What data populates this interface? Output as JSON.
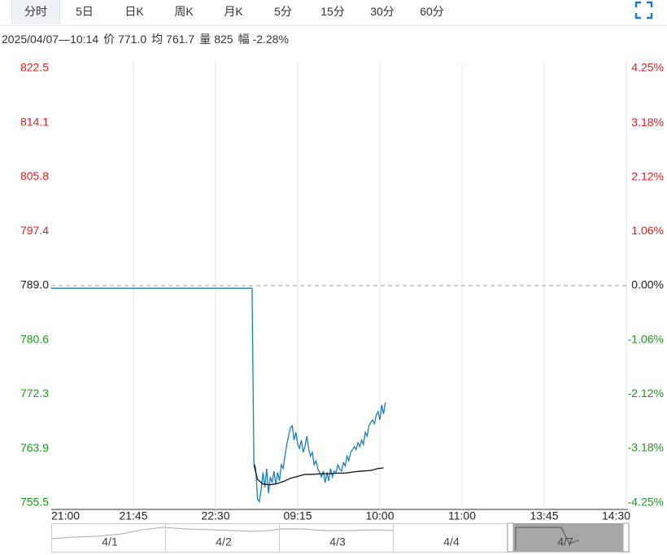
{
  "tabs": {
    "items": [
      "分时",
      "5日",
      "日K",
      "周K",
      "月K",
      "5分",
      "15分",
      "30分",
      "60分"
    ],
    "selected": 0
  },
  "info": {
    "datetime": "2025/04/07—10:14",
    "items": [
      {
        "label": "价",
        "value": "771.0"
      },
      {
        "label": "均",
        "value": "761.7"
      },
      {
        "label": "量",
        "value": "825"
      },
      {
        "label": "幅",
        "value": "-2.28%"
      }
    ]
  },
  "chart_data": {
    "type": "line",
    "xlim": [
      0,
      315
    ],
    "xticks": [
      {
        "value": 0,
        "label": "21:00"
      },
      {
        "value": 45,
        "label": "21:45"
      },
      {
        "value": 90,
        "label": "22:30"
      },
      {
        "value": 135,
        "label": "09:15"
      },
      {
        "value": 180,
        "label": "10:00"
      },
      {
        "value": 225,
        "label": "11:00"
      },
      {
        "value": 270,
        "label": "13:45"
      },
      {
        "value": 315,
        "label": "14:30"
      }
    ],
    "ylim": [
      755.5,
      822.5
    ],
    "yticks": [
      822.5,
      814.1,
      805.8,
      797.4,
      {
        "value": 789.0,
        "label": "789.0"
      },
      780.6,
      772.3,
      763.9,
      755.5
    ],
    "y2lim": [
      -4.25,
      4.25
    ],
    "y2ticks": [
      {
        "value": 4.25,
        "label": "4.25%"
      },
      {
        "value": 3.18,
        "label": "3.18%"
      },
      {
        "value": 2.12,
        "label": "2.12%"
      },
      {
        "value": 1.06,
        "label": "1.06%"
      },
      {
        "value": 0,
        "label": "0.00%"
      },
      {
        "value": -1.06,
        "label": "-1.06%"
      },
      {
        "value": -2.12,
        "label": "-2.12%"
      },
      {
        "value": -3.18,
        "label": "-3.18%"
      },
      {
        "value": -4.25,
        "label": "-4.25%"
      }
    ],
    "reference": 789.0,
    "up_color": "#e02020",
    "down_color": "#1e9b1e",
    "flat_color": "#222222",
    "grid": true,
    "series": [
      {
        "color": "#1a7dc4",
        "x": [
          0,
          110,
          111,
          112,
          113,
          114,
          115,
          116,
          117,
          118,
          119,
          120,
          121,
          122,
          123,
          124,
          125,
          126,
          127,
          128,
          129,
          130,
          131,
          132,
          133,
          134,
          135,
          136,
          137,
          138,
          139,
          140,
          141,
          142,
          143,
          144,
          145,
          146,
          147,
          148,
          149,
          150,
          151,
          152,
          153,
          154,
          155,
          156,
          157,
          158,
          159,
          160,
          161,
          162,
          163,
          164,
          165,
          166,
          167,
          168,
          169,
          170,
          171,
          172,
          173,
          174,
          175,
          176,
          177,
          178,
          179,
          180,
          181,
          182,
          183
        ],
        "values": [
          788.6,
          788.6,
          761.7,
          760.8,
          756.1,
          755.7,
          757.6,
          760.2,
          757.9,
          760.8,
          757.0,
          759.5,
          758.6,
          760.4,
          758.3,
          760.2,
          758.9,
          761.4,
          760.8,
          762.7,
          764.5,
          765.8,
          767.1,
          767.4,
          765.2,
          766.4,
          764.5,
          763.9,
          765.2,
          763.3,
          764.2,
          765.8,
          763.9,
          762.7,
          763.3,
          761.4,
          762.0,
          760.8,
          760.2,
          759.5,
          760.4,
          758.6,
          760.2,
          758.9,
          760.8,
          759.5,
          760.4,
          760.2,
          761.4,
          760.7,
          760.4,
          761.7,
          761.2,
          762.7,
          762.0,
          763.3,
          763.7,
          764.2,
          763.7,
          764.8,
          764.2,
          765.2,
          764.5,
          766.4,
          765.8,
          767.4,
          767.9,
          768.3,
          767.7,
          769.0,
          769.6,
          768.3,
          770.6,
          769.2,
          771.0
        ]
      },
      {
        "color": "#111111",
        "x": [
          111,
          113,
          116,
          120,
          124,
          128,
          131,
          135,
          139,
          143,
          148,
          152,
          157,
          161,
          166,
          170,
          175,
          179,
          182
        ],
        "values": [
          761.4,
          759.1,
          758.4,
          758.3,
          758.5,
          758.9,
          759.3,
          759.6,
          759.9,
          759.9,
          760.0,
          760.0,
          760.1,
          760.1,
          760.3,
          760.4,
          760.5,
          760.8,
          760.9
        ]
      }
    ]
  },
  "navigator": {
    "dates": [
      "4/1",
      "4/2",
      "4/3",
      "4/4",
      "4/7"
    ]
  }
}
